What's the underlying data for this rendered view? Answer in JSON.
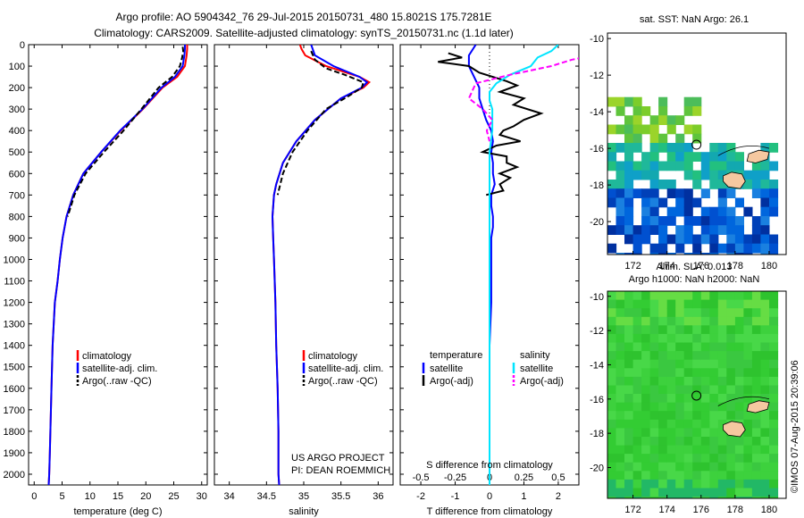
{
  "header": {
    "line1": "Argo profile: AO 5904342_76 29-Jul-2015 20150731_480 15.8021S 175.7281E",
    "line2": "Climatology: CARS2009. Satellite-adjusted climatology: synTS_20150731.nc (1.1d later)"
  },
  "colors": {
    "climatology": "#ff0000",
    "satellite": "#0000ff",
    "argo": "#000000",
    "sal_satellite": "#00e5ff",
    "sal_argo": "#ff00ff"
  },
  "chart_data": [
    {
      "id": "temperature",
      "type": "line",
      "xlabel": "temperature (deg C)",
      "ylabel": "",
      "xlim": [
        -1,
        31
      ],
      "ylim": [
        2050,
        0
      ],
      "xticks": [
        0,
        5,
        10,
        15,
        20,
        25,
        30
      ],
      "yticks": [
        0,
        100,
        200,
        300,
        400,
        500,
        600,
        700,
        800,
        900,
        1000,
        1100,
        1200,
        1300,
        1400,
        1500,
        1600,
        1700,
        1800,
        1900,
        2000
      ],
      "legend": [
        "climatology",
        "satellite-adj. clim.",
        "Argo(..raw -QC)"
      ],
      "series": [
        {
          "name": "climatology",
          "color": "#ff0000",
          "dash": "",
          "x": [
            27.4,
            27.4,
            27.3,
            27.0,
            25.6,
            23.0,
            19.5,
            15.5,
            12.0,
            8.8,
            7.0,
            5.8,
            5.1,
            4.6,
            4.2,
            3.7,
            3.3,
            3.1,
            2.9,
            2.8,
            2.7,
            2.6
          ],
          "y": [
            0,
            20,
            50,
            100,
            150,
            200,
            300,
            400,
            500,
            600,
            700,
            800,
            900,
            1000,
            1100,
            1200,
            1400,
            1600,
            1800,
            1900,
            2000,
            2050
          ]
        },
        {
          "name": "satellite-adj. clim.",
          "color": "#0000ff",
          "dash": "",
          "x": [
            27.0,
            27.0,
            26.9,
            26.6,
            25.2,
            22.8,
            19.4,
            15.4,
            12.0,
            8.8,
            7.0,
            5.8,
            5.1,
            4.6,
            4.2,
            3.7,
            3.3,
            3.1,
            2.9,
            2.8,
            2.7,
            2.6
          ],
          "y": [
            0,
            20,
            50,
            100,
            150,
            200,
            300,
            400,
            500,
            600,
            700,
            800,
            900,
            1000,
            1100,
            1200,
            1400,
            1600,
            1800,
            1900,
            2000,
            2050
          ]
        },
        {
          "name": "Argo(..raw -QC)",
          "color": "#000000",
          "dash": "6,3",
          "x": [
            26.6,
            26.7,
            26.5,
            26.1,
            24.7,
            22.3,
            19.2,
            16.0,
            12.5,
            9.2,
            7.2,
            6.0
          ],
          "y": [
            10,
            30,
            60,
            100,
            150,
            200,
            300,
            400,
            500,
            600,
            700,
            800
          ]
        }
      ]
    },
    {
      "id": "salinity",
      "type": "line",
      "xlabel": "salinity",
      "ylabel": "",
      "xlim": [
        33.8,
        36.2
      ],
      "ylim": [
        2050,
        0
      ],
      "xticks": [
        34,
        34.5,
        35,
        35.5,
        36
      ],
      "xticklabels": [
        "34",
        "34.5",
        "35",
        "35.5",
        "36"
      ],
      "legend": [
        "climatology",
        "satellite-adj. clim.",
        "Argo(..raw -QC)"
      ],
      "annotation": [
        "US ARGO PROJECT",
        "PI: DEAN ROEMMICH"
      ],
      "series": [
        {
          "name": "climatology",
          "color": "#ff0000",
          "dash": "",
          "x": [
            34.95,
            34.97,
            35.02,
            35.3,
            35.75,
            35.88,
            35.8,
            35.5,
            35.15,
            34.9,
            34.72,
            34.63,
            34.6,
            34.58,
            34.59,
            34.6,
            34.62,
            34.63,
            34.65,
            34.66,
            34.66,
            34.67
          ],
          "y": [
            0,
            20,
            50,
            100,
            150,
            175,
            200,
            250,
            350,
            450,
            550,
            650,
            700,
            800,
            900,
            1000,
            1200,
            1400,
            1600,
            1800,
            2000,
            2050
          ]
        },
        {
          "name": "satellite-adj. clim.",
          "color": "#0000ff",
          "dash": "",
          "x": [
            35.1,
            35.12,
            35.15,
            35.4,
            35.75,
            35.85,
            35.78,
            35.5,
            35.15,
            34.9,
            34.72,
            34.63,
            34.6,
            34.58,
            34.59,
            34.6,
            34.62,
            34.63,
            34.65,
            34.66,
            34.66,
            34.67
          ],
          "y": [
            0,
            20,
            50,
            100,
            150,
            175,
            200,
            250,
            350,
            450,
            550,
            650,
            700,
            800,
            900,
            1000,
            1200,
            1400,
            1600,
            1800,
            2000,
            2050
          ]
        },
        {
          "name": "Argo(..raw -QC)",
          "color": "#000000",
          "dash": "6,3",
          "x": [
            35.1,
            35.15,
            35.3,
            35.55,
            35.8,
            35.78,
            35.6,
            35.3,
            35.05,
            34.85,
            34.72,
            34.65
          ],
          "y": [
            30,
            70,
            110,
            140,
            175,
            200,
            240,
            300,
            400,
            500,
            600,
            700
          ]
        }
      ]
    },
    {
      "id": "difference",
      "type": "line",
      "xlabel": "T difference from climatology",
      "x2label": "S difference from climatology",
      "xlim": [
        -2.6,
        2.6
      ],
      "ylim": [
        2050,
        0
      ],
      "xticks": [
        -2,
        -1,
        0,
        1,
        2
      ],
      "x2ticks": [
        -0.5,
        -0.25,
        0,
        0.25,
        0.5
      ],
      "x2ticklabels": [
        "-0.5",
        "-0.25",
        "0",
        "0.25",
        "0.5"
      ],
      "legend": {
        "left_title": "temperature",
        "right_title": "salinity",
        "left": [
          "satellite",
          "Argo(-adj)"
        ],
        "right": [
          "satellite",
          "Argo(-adj)"
        ]
      },
      "series": [
        {
          "name": "temperature satellite",
          "color": "#0000ff",
          "dash": "",
          "x": [
            -0.4,
            -0.6,
            -0.6,
            -0.45,
            -0.3,
            -0.3,
            -0.2,
            -0.1,
            0.05,
            0.1,
            0.05,
            0.1,
            0.1,
            0.15,
            0.05,
            0.05,
            0.1,
            0.1,
            0.05,
            0.05,
            0.05,
            0.0,
            0.0,
            0.0,
            0.0
          ],
          "y": [
            0,
            50,
            100,
            150,
            200,
            250,
            300,
            350,
            400,
            450,
            500,
            550,
            600,
            650,
            700,
            750,
            800,
            850,
            900,
            1000,
            1200,
            1400,
            1600,
            1800,
            2050
          ]
        },
        {
          "name": "temperature Argo(-adj)",
          "color": "#000000",
          "dash": "",
          "x": [
            -1.2,
            -0.8,
            -1.5,
            -0.6,
            -0.3,
            0.5,
            0.8,
            0.3,
            1.0,
            0.7,
            1.5,
            1.0,
            0.7,
            0.4,
            0.3,
            0.9,
            0.2,
            -0.2,
            0.5,
            0.5,
            0.8,
            0.3,
            0.6,
            0.3,
            0.4,
            -0.1
          ],
          "y": [
            40,
            60,
            80,
            100,
            130,
            170,
            190,
            220,
            250,
            280,
            320,
            350,
            380,
            400,
            420,
            450,
            470,
            500,
            520,
            550,
            570,
            600,
            620,
            650,
            680,
            700
          ]
        },
        {
          "name": "salinity satellite",
          "color": "#00e5ff",
          "dash": "",
          "x": [
            0.5,
            0.45,
            0.35,
            0.3,
            0.15,
            0.05,
            0.0,
            0.0,
            0.02,
            0.02,
            0.0,
            0.0,
            0.0,
            0.0,
            0.0
          ],
          "y": [
            0,
            30,
            60,
            100,
            140,
            180,
            220,
            260,
            300,
            400,
            500,
            600,
            800,
            1200,
            2050
          ]
        },
        {
          "name": "salinity Argo(-adj)",
          "color": "#ff00ff",
          "dash": "6,3",
          "x": [
            0.85,
            0.6,
            0.45,
            0.15,
            -0.1,
            -0.15,
            -0.05,
            0.02,
            -0.02,
            0.0
          ],
          "y": [
            40,
            70,
            100,
            140,
            180,
            250,
            300,
            350,
            400,
            450
          ]
        }
      ]
    },
    {
      "id": "sst_map",
      "type": "heatmap",
      "title": "sat. SST: NaN Argo: 26.1",
      "xticks": [
        172,
        174,
        176,
        178,
        180
      ],
      "yticks": [
        -10,
        -12,
        -14,
        -16,
        -18,
        -20
      ],
      "xlim": [
        170.5,
        181
      ],
      "ylim": [
        -21.8,
        -9.7
      ],
      "profile_location": [
        175.73,
        -15.8
      ]
    },
    {
      "id": "sla_map",
      "type": "heatmap",
      "title": "Altim. SLA: 0.013",
      "subtitle": "Argo h1000: NaN h2000: NaN",
      "xticks": [
        172,
        174,
        176,
        178,
        180
      ],
      "yticks": [
        -10,
        -12,
        -14,
        -16,
        -18,
        -20
      ],
      "xlim": [
        170.5,
        181
      ],
      "ylim": [
        -21.8,
        -9.7
      ],
      "profile_location": [
        175.73,
        -15.8
      ]
    }
  ],
  "footer": {
    "credit": "©IMOS 07-Aug-2015 20:39:06"
  }
}
